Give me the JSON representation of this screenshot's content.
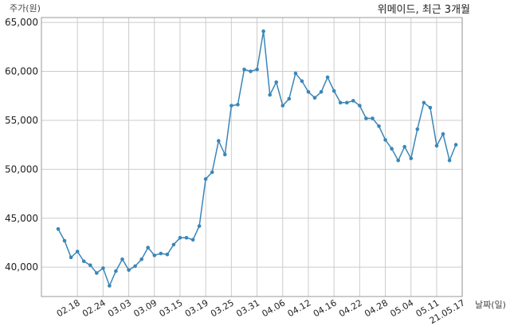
{
  "chart_data": {
    "type": "line",
    "title": "위메이드, 최근 3개월",
    "ylabel": "주가(원)",
    "xlabel": "날짜(일)",
    "ylim": [
      37000,
      65500
    ],
    "yticks": [
      40000,
      45000,
      50000,
      55000,
      60000,
      65000
    ],
    "ytick_labels": [
      "40,000",
      "45,000",
      "50,000",
      "55,000",
      "60,000",
      "65,000"
    ],
    "xtick_labels": [
      "02.18",
      "02.24",
      "03.03",
      "03.09",
      "03.15",
      "03.19",
      "03.25",
      "03.31",
      "04.06",
      "04.12",
      "04.16",
      "04.22",
      "04.28",
      "05.04",
      "05.11",
      "21.05.17"
    ],
    "xtick_positions": [
      3,
      7,
      11,
      15,
      19,
      23,
      27,
      31,
      35,
      39,
      43,
      47,
      51,
      55,
      59,
      63
    ],
    "grid": true,
    "line_color": "#3a86b8",
    "series": [
      {
        "name": "",
        "values": [
          43900,
          42700,
          41000,
          41600,
          40600,
          40200,
          39400,
          39900,
          38100,
          39600,
          40800,
          39700,
          40100,
          40800,
          42000,
          41200,
          41400,
          41300,
          42300,
          43000,
          43000,
          42800,
          44200,
          49000,
          49700,
          52900,
          51500,
          56500,
          56600,
          60200,
          60000,
          60200,
          64100,
          57600,
          58900,
          56500,
          57200,
          59800,
          59000,
          57900,
          57300,
          57900,
          59400,
          58000,
          56800,
          56800,
          57000,
          56500,
          55200,
          55200,
          54400,
          53000,
          52100,
          50900,
          52300,
          51100,
          54100,
          56800,
          56300,
          52400,
          53600,
          50900,
          52500
        ]
      }
    ]
  }
}
